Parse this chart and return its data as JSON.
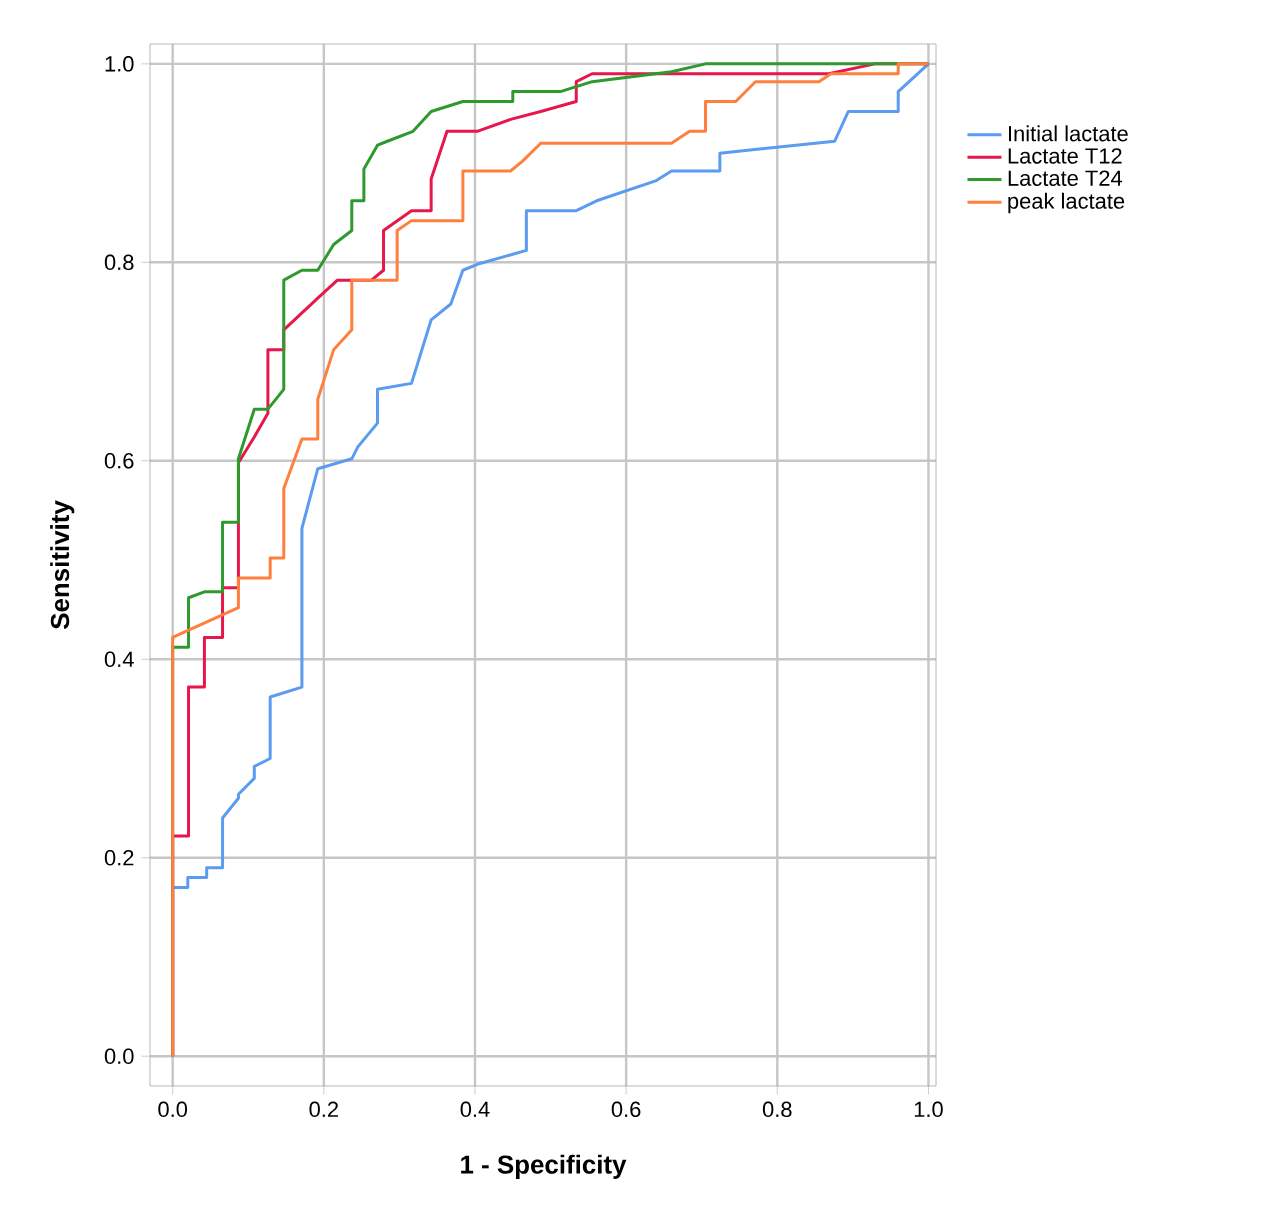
{
  "chart_data": {
    "type": "line",
    "xlabel": "1 - Specificity",
    "ylabel": "Sensitivity",
    "xlim": [
      -0.03,
      1.01
    ],
    "ylim": [
      -0.03,
      1.02
    ],
    "xticks": [
      {
        "value": 0,
        "label": "0.0"
      },
      {
        "value": 0.2,
        "label": "0.2"
      },
      {
        "value": 0.4,
        "label": "0.4"
      },
      {
        "value": 0.6,
        "label": "0.6"
      },
      {
        "value": 0.8,
        "label": "0.8"
      },
      {
        "value": 1,
        "label": "1.0"
      }
    ],
    "yticks": [
      {
        "value": 0,
        "label": "0.0"
      },
      {
        "value": 0.2,
        "label": "0.2"
      },
      {
        "value": 0.4,
        "label": "0.4"
      },
      {
        "value": 0.6,
        "label": "0.6"
      },
      {
        "value": 0.8,
        "label": "0.8"
      },
      {
        "value": 1,
        "label": "1.0"
      }
    ],
    "grid": true,
    "legend": "right",
    "marker": "none",
    "line_style": "solid",
    "series": [
      {
        "name": "Initial lactate",
        "color": "#5b9bf0",
        "x": [
          0,
          0,
          0.02,
          0.02,
          0.045,
          0.045,
          0.066,
          0.066,
          0.087,
          0.087,
          0.108,
          0.108,
          0.129,
          0.129,
          0.171,
          0.171,
          0.192,
          0.237,
          0.245,
          0.271,
          0.271,
          0.316,
          0.342,
          0.368,
          0.384,
          0.403,
          0.468,
          0.468,
          0.534,
          0.561,
          0.639,
          0.66,
          0.724,
          0.724,
          0.876,
          0.894,
          0.96,
          0.96,
          1.0
        ],
        "values": [
          0,
          0.17,
          0.17,
          0.18,
          0.18,
          0.19,
          0.19,
          0.24,
          0.26,
          0.264,
          0.28,
          0.292,
          0.3,
          0.362,
          0.372,
          0.532,
          0.592,
          0.602,
          0.614,
          0.638,
          0.672,
          0.678,
          0.742,
          0.758,
          0.792,
          0.798,
          0.812,
          0.852,
          0.852,
          0.862,
          0.882,
          0.892,
          0.892,
          0.91,
          0.922,
          0.952,
          0.952,
          0.972,
          1.0
        ]
      },
      {
        "name": "Lactate T12",
        "color": "#e5174b",
        "x": [
          0,
          0,
          0.021,
          0.021,
          0.042,
          0.042,
          0.066,
          0.066,
          0.087,
          0.087,
          0.108,
          0.126,
          0.126,
          0.147,
          0.147,
          0.192,
          0.218,
          0.263,
          0.279,
          0.279,
          0.316,
          0.342,
          0.342,
          0.363,
          0.403,
          0.447,
          0.487,
          0.534,
          0.534,
          0.555,
          0.868,
          0.929,
          1.0
        ],
        "values": [
          0,
          0.222,
          0.222,
          0.372,
          0.372,
          0.422,
          0.422,
          0.472,
          0.472,
          0.598,
          0.624,
          0.648,
          0.712,
          0.712,
          0.732,
          0.764,
          0.782,
          0.782,
          0.792,
          0.832,
          0.852,
          0.852,
          0.884,
          0.932,
          0.932,
          0.944,
          0.952,
          0.962,
          0.982,
          0.99,
          0.99,
          1.0,
          1.0
        ]
      },
      {
        "name": "Lactate T24",
        "color": "#2e9a2e",
        "x": [
          0,
          0,
          0.021,
          0.021,
          0.042,
          0.066,
          0.066,
          0.087,
          0.087,
          0.108,
          0.126,
          0.147,
          0.147,
          0.171,
          0.192,
          0.213,
          0.237,
          0.237,
          0.253,
          0.253,
          0.271,
          0.284,
          0.318,
          0.342,
          0.384,
          0.45,
          0.45,
          0.513,
          0.555,
          0.66,
          0.705,
          1.0
        ],
        "values": [
          0,
          0.412,
          0.412,
          0.462,
          0.468,
          0.468,
          0.538,
          0.538,
          0.602,
          0.652,
          0.652,
          0.672,
          0.782,
          0.792,
          0.792,
          0.818,
          0.832,
          0.862,
          0.862,
          0.894,
          0.918,
          0.922,
          0.932,
          0.952,
          0.962,
          0.962,
          0.972,
          0.972,
          0.982,
          0.992,
          1.0,
          1.0
        ]
      },
      {
        "name": "peak lactate",
        "color": "#ff7f3f",
        "x": [
          0,
          0,
          0.087,
          0.087,
          0.129,
          0.129,
          0.147,
          0.147,
          0.171,
          0.192,
          0.192,
          0.213,
          0.237,
          0.237,
          0.297,
          0.297,
          0.316,
          0.384,
          0.384,
          0.447,
          0.463,
          0.487,
          0.66,
          0.684,
          0.705,
          0.705,
          0.745,
          0.771,
          0.855,
          0.871,
          0.96,
          0.96,
          1.0
        ],
        "values": [
          0,
          0.422,
          0.452,
          0.482,
          0.482,
          0.502,
          0.502,
          0.572,
          0.622,
          0.622,
          0.662,
          0.712,
          0.732,
          0.782,
          0.782,
          0.832,
          0.842,
          0.842,
          0.892,
          0.892,
          0.902,
          0.92,
          0.92,
          0.932,
          0.932,
          0.962,
          0.962,
          0.982,
          0.982,
          0.99,
          0.99,
          1.0,
          1.0
        ]
      }
    ]
  }
}
